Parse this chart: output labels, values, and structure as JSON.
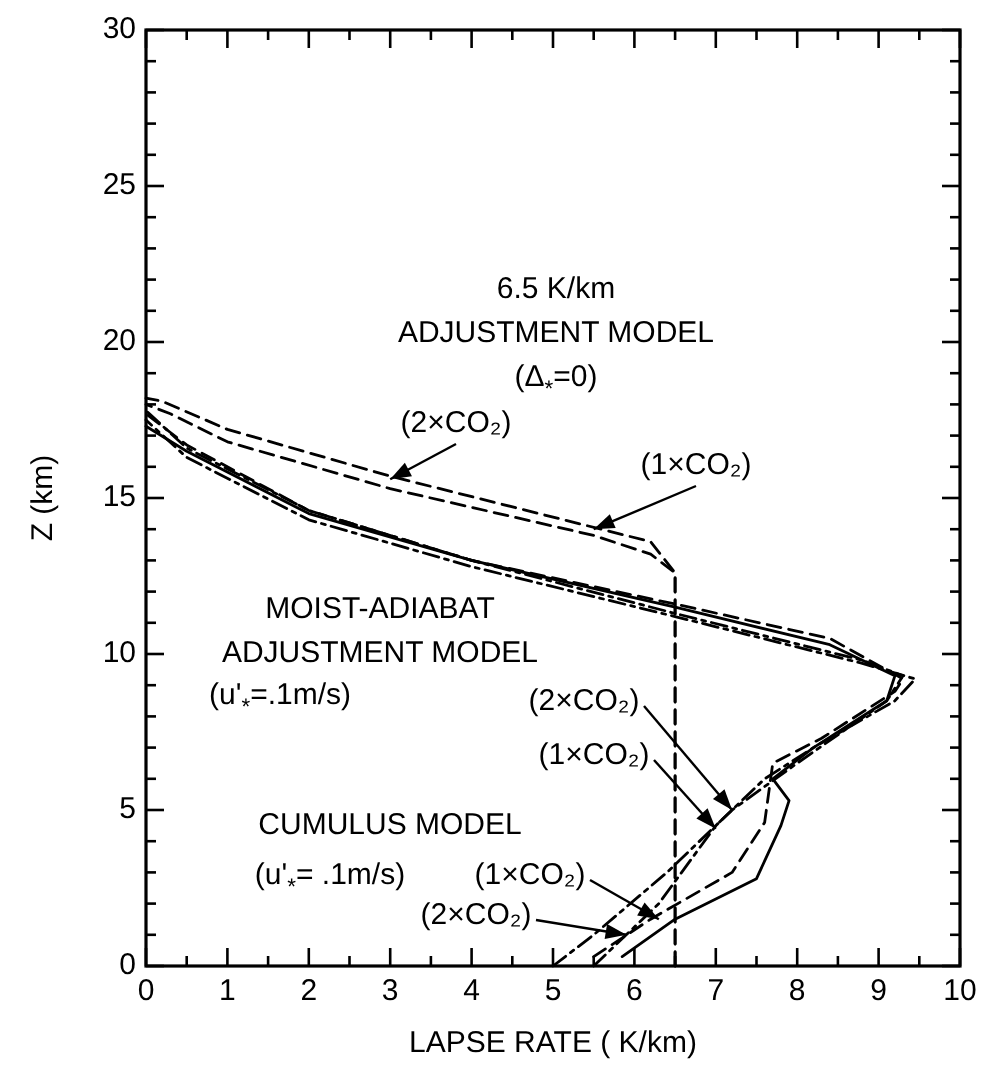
{
  "chart_data": {
    "type": "line",
    "xlabel": "LAPSE RATE ( K/km)",
    "ylabel": "Z (km)",
    "xlim": [
      0,
      10
    ],
    "ylim": [
      0,
      30
    ],
    "xticks": [
      0,
      {
        "value": 0.5,
        "label": null
      },
      1,
      {
        "value": 1.5,
        "label": null
      },
      2,
      {
        "value": 2.5,
        "label": null
      },
      3,
      {
        "value": 3.5,
        "label": null
      },
      4,
      {
        "value": 4.5,
        "label": null
      },
      5,
      {
        "value": 5.5,
        "label": null
      },
      6,
      {
        "value": 6.5,
        "label": null
      },
      7,
      {
        "value": 7.5,
        "label": null
      },
      8,
      {
        "value": 8.5,
        "label": null
      },
      9,
      {
        "value": 9.5,
        "label": null
      },
      10
    ],
    "yticks": [
      0,
      {
        "value": 1,
        "label": null
      },
      {
        "value": 2,
        "label": null
      },
      {
        "value": 3,
        "label": null
      },
      {
        "value": 4,
        "label": null
      },
      5,
      {
        "value": 6,
        "label": null
      },
      {
        "value": 7,
        "label": null
      },
      {
        "value": 8,
        "label": null
      },
      {
        "value": 9,
        "label": null
      },
      10,
      {
        "value": 11,
        "label": null
      },
      {
        "value": 12,
        "label": null
      },
      {
        "value": 13,
        "label": null
      },
      {
        "value": 14,
        "label": null
      },
      15,
      {
        "value": 16,
        "label": null
      },
      {
        "value": 17,
        "label": null
      },
      {
        "value": 18,
        "label": null
      },
      {
        "value": 19,
        "label": null
      },
      20,
      {
        "value": 21,
        "label": null
      },
      {
        "value": 22,
        "label": null
      },
      {
        "value": 23,
        "label": null
      },
      {
        "value": 24,
        "label": null
      },
      25,
      {
        "value": 26,
        "label": null
      },
      {
        "value": 27,
        "label": null
      },
      {
        "value": 28,
        "label": null
      },
      {
        "value": 29,
        "label": null
      },
      30
    ],
    "grid": false,
    "marker": "none",
    "series": [
      {
        "color": "#000000",
        "line_style": "dashed",
        "x": [
          6.5,
          6.5,
          6.2,
          5.5,
          3,
          1,
          0.3,
          0
        ],
        "values": [
          0,
          12.6,
          13.2,
          13.8,
          15.3,
          16.8,
          17.7,
          18
        ]
      },
      {
        "color": "#000000",
        "line_style": "dashed",
        "x": [
          6.5,
          6.5,
          6.2,
          3,
          1,
          0.2,
          0
        ],
        "values": [
          0,
          12.6,
          13.6,
          15.7,
          17.2,
          18.1,
          18.2
        ]
      },
      {
        "color": "#000000",
        "line_style": "dotted",
        "x": [
          5.5,
          6.3,
          7,
          7.6,
          8.2,
          9.2,
          9.45,
          8.8,
          6.5,
          4,
          2,
          0.5,
          0
        ],
        "values": [
          0,
          2,
          4.5,
          6,
          7,
          8.5,
          9.2,
          9.7,
          11.2,
          12.8,
          14.3,
          16.3,
          17.5
        ]
      },
      {
        "color": "#000000",
        "line_style": "dotted",
        "x": [
          5,
          5.5,
          6.4,
          7.2,
          8,
          9.1,
          9.3,
          8.8,
          6.5,
          4,
          2,
          0.5,
          0
        ],
        "values": [
          0,
          1,
          3,
          5,
          6.5,
          8.5,
          9.3,
          9.8,
          11.3,
          13,
          14.6,
          16.6,
          17.8
        ]
      },
      {
        "color": "#000000",
        "line_style": "solid",
        "x": [
          5.85,
          6.5,
          7.5,
          7.8,
          7.9,
          7.7,
          8.2,
          9.1,
          9.2,
          8.4,
          6.5,
          4,
          2,
          0.5,
          0
        ],
        "values": [
          0.3,
          1.5,
          2.8,
          4.5,
          5.3,
          6,
          7,
          8.5,
          9.3,
          10.3,
          11.5,
          13,
          14.5,
          16.5,
          17.3
        ]
      },
      {
        "color": "#000000",
        "line_style": "dashed",
        "x": [
          5.5,
          6.2,
          7.2,
          7.6,
          7.7,
          8.3,
          9.2,
          9.3,
          8.4,
          6.5,
          4,
          2,
          0.5,
          0
        ],
        "values": [
          0.3,
          1.5,
          3,
          4.6,
          6.5,
          7.3,
          8.8,
          9.2,
          10.5,
          11.6,
          13,
          14.6,
          16.7,
          17.7
        ]
      }
    ],
    "annotations": [
      "6.5 K/km",
      "ADJUSTMENT MODEL",
      "(Δ$_{*}$=0)",
      "MOIST-ADIABAT",
      "ADJUSTMENT MODEL",
      "(u'$_{*}$=.1m/s)",
      "CUMULUS MODEL",
      "(u'$_{*}$= .1m/s)",
      {
        "text": "(2×CO₂)",
        "x": 3.0,
        "y": 15.6
      },
      {
        "text": "(1×CO₂)",
        "x": 5.5,
        "y": 14.0
      },
      {
        "text": "(2×CO₂)",
        "x": 7.2,
        "y": 5.0
      },
      {
        "text": "(1×CO₂)",
        "x": 7.0,
        "y": 4.4
      },
      {
        "text": "(1×CO₂)",
        "x": 6.3,
        "y": 1.5
      },
      {
        "text": "(2×CO₂)",
        "x": 5.9,
        "y": 1.0
      }
    ]
  }
}
